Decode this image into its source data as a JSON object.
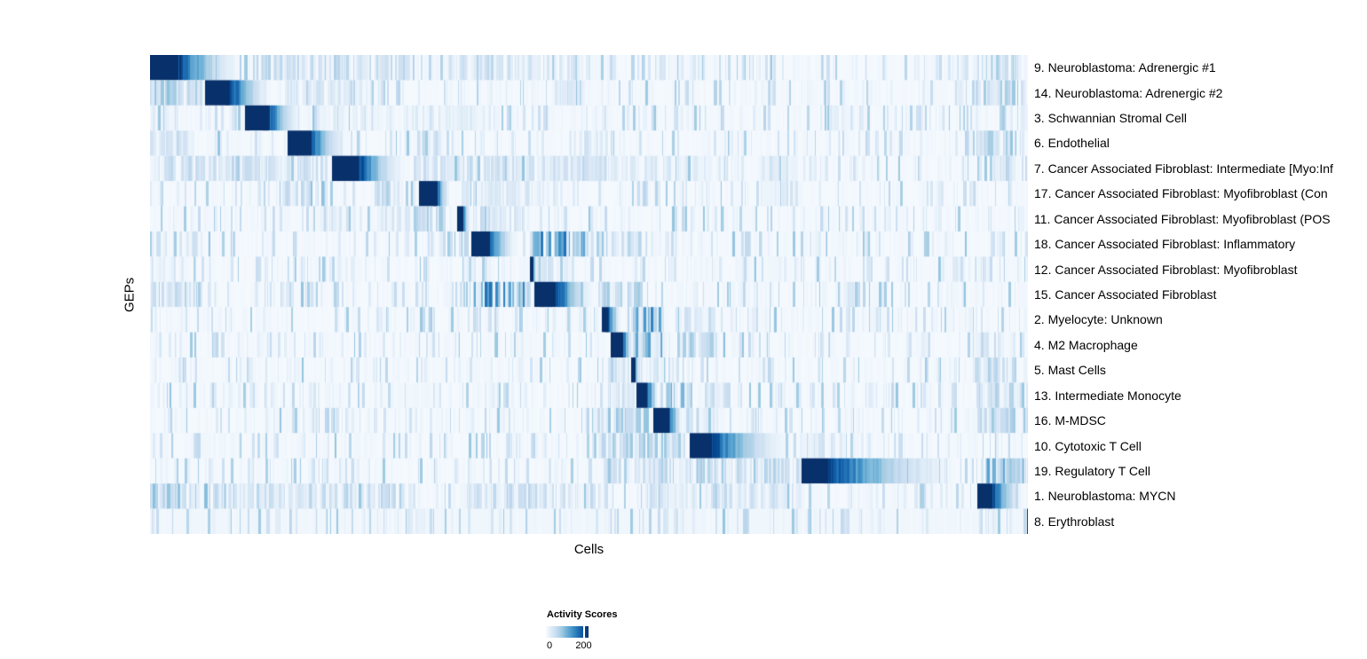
{
  "chart_data": {
    "type": "heatmap",
    "title": "",
    "xlabel": "Cells",
    "ylabel": "GEPs",
    "colormap": "Blues (white to dark blue)",
    "legend": {
      "title": "Activity Scores",
      "min_label": "0",
      "tick_label": "200",
      "tick_fraction": 0.875,
      "position": "bottom"
    },
    "color_scale": {
      "min": 0,
      "tick_value": 200,
      "colors": [
        "#f7fbff",
        "#deebf7",
        "#c6dbef",
        "#9ecae1",
        "#6baed6",
        "#4292c6",
        "#2171b5",
        "#08519c",
        "#08306b"
      ]
    },
    "description": "Cells (columns) grouped and sorted by dominant GEP activity, producing a diagonal of dark-blue blocks that fade rightward; sparse vertical blue stripes elsewhere. Block positions are fractions of the x-axis.",
    "rows": [
      {
        "label": "9. Neuroblastoma: Adrenergic #1",
        "block": {
          "start": 0.0,
          "core_end": 0.031,
          "fade_end": 0.113
        },
        "clusters": [
          [
            0.115,
            0.3,
            0.22
          ],
          [
            0.33,
            0.5,
            0.16
          ],
          [
            0.58,
            0.63,
            0.12
          ],
          [
            0.94,
            0.985,
            0.3
          ]
        ]
      },
      {
        "label": "14. Neuroblastoma: Adrenergic #2",
        "block": {
          "start": 0.06,
          "core_end": 0.091,
          "fade_end": 0.143
        },
        "clusters": [
          [
            0.0,
            0.058,
            0.3
          ],
          [
            0.15,
            0.27,
            0.14
          ],
          [
            0.46,
            0.5,
            0.12
          ],
          [
            0.94,
            0.985,
            0.28
          ]
        ]
      },
      {
        "label": "3. Schwannian Stromal Cell",
        "block": {
          "start": 0.107,
          "core_end": 0.133,
          "fade_end": 0.178
        },
        "clusters": [
          [
            0.0,
            0.02,
            0.15
          ],
          [
            0.19,
            0.4,
            0.1
          ],
          [
            0.77,
            0.8,
            0.12
          ]
        ]
      },
      {
        "label": "6. Endothelial",
        "block": {
          "start": 0.156,
          "core_end": 0.181,
          "fade_end": 0.229
        },
        "clusters": [
          [
            0.0,
            0.05,
            0.18
          ],
          [
            0.3,
            0.33,
            0.22
          ],
          [
            0.49,
            0.52,
            0.18
          ],
          [
            0.94,
            0.985,
            0.3
          ]
        ]
      },
      {
        "label": "7. Cancer Associated Fibroblast: Intermediate [Myo:Inf",
        "block": {
          "start": 0.206,
          "core_end": 0.237,
          "fade_end": 0.295
        },
        "clusters": [
          [
            0.0,
            0.2,
            0.2
          ],
          [
            0.3,
            0.6,
            0.16
          ],
          [
            0.6,
            0.77,
            0.1
          ],
          [
            0.94,
            0.985,
            0.24
          ]
        ]
      },
      {
        "label": "17. Cancer Associated Fibroblast: Myofibroblast (Con",
        "block": {
          "start": 0.306,
          "core_end": 0.325,
          "fade_end": 0.343
        },
        "clusters": [
          [
            0.15,
            0.2,
            0.3
          ],
          [
            0.26,
            0.3,
            0.18
          ],
          [
            0.35,
            0.45,
            0.14
          ],
          [
            0.7,
            0.73,
            0.1
          ]
        ]
      },
      {
        "label": "11. Cancer Associated Fibroblast: Myofibroblast (POS",
        "block": {
          "start": 0.349,
          "core_end": 0.355,
          "fade_end": 0.366
        },
        "clusters": [
          [
            0.2,
            0.3,
            0.14
          ],
          [
            0.3,
            0.345,
            0.25
          ],
          [
            0.37,
            0.43,
            0.2
          ]
        ]
      },
      {
        "label": "18. Cancer Associated Fibroblast: Inflammatory",
        "block": {
          "start": 0.366,
          "core_end": 0.385,
          "fade_end": 0.421
        },
        "clusters": [
          [
            0.0,
            0.06,
            0.16
          ],
          [
            0.33,
            0.36,
            0.28
          ],
          [
            0.43,
            0.5,
            0.55
          ],
          [
            0.5,
            0.56,
            0.24
          ],
          [
            0.57,
            0.6,
            0.14
          ]
        ]
      },
      {
        "label": "12. Cancer Associated Fibroblast: Myofibroblast",
        "block": {
          "start": 0.432,
          "core_end": 0.4355,
          "fade_end": 0.44
        },
        "clusters": [
          [
            0.0,
            0.04,
            0.14
          ],
          [
            0.2,
            0.23,
            0.1
          ],
          [
            0.44,
            0.48,
            0.14
          ]
        ]
      },
      {
        "label": "15. Cancer Associated Fibroblast",
        "block": {
          "start": 0.437,
          "core_end": 0.462,
          "fade_end": 0.51
        },
        "clusters": [
          [
            0.0,
            0.06,
            0.24
          ],
          [
            0.17,
            0.2,
            0.14
          ],
          [
            0.335,
            0.365,
            0.28
          ],
          [
            0.368,
            0.435,
            0.55
          ],
          [
            0.51,
            0.56,
            0.26
          ]
        ]
      },
      {
        "label": "2. Myelocyte: Unknown",
        "block": {
          "start": 0.513,
          "core_end": 0.521,
          "fade_end": 0.538
        },
        "clusters": [
          [
            0.545,
            0.585,
            0.5
          ],
          [
            0.6,
            0.64,
            0.16
          ],
          [
            0.66,
            0.69,
            0.1
          ]
        ]
      },
      {
        "label": "4. M2 Macrophage",
        "block": {
          "start": 0.523,
          "core_end": 0.537,
          "fade_end": 0.551
        },
        "clusters": [
          [
            0.07,
            0.075,
            0.28
          ],
          [
            0.55,
            0.585,
            0.45
          ],
          [
            0.6,
            0.655,
            0.32
          ],
          [
            0.94,
            0.97,
            0.14
          ]
        ]
      },
      {
        "label": "5. Mast Cells",
        "block": {
          "start": 0.548,
          "core_end": 0.5515,
          "fade_end": 0.557
        },
        "clusters": [
          [
            0.52,
            0.545,
            0.16
          ],
          [
            0.558,
            0.6,
            0.16
          ],
          [
            0.94,
            0.985,
            0.24
          ]
        ]
      },
      {
        "label": "13. Intermediate Monocyte",
        "block": {
          "start": 0.554,
          "core_end": 0.565,
          "fade_end": 0.58
        },
        "clusters": [
          [
            0.07,
            0.075,
            0.22
          ],
          [
            0.52,
            0.552,
            0.2
          ],
          [
            0.585,
            0.625,
            0.4
          ],
          [
            0.63,
            0.66,
            0.18
          ],
          [
            0.94,
            0.985,
            0.28
          ]
        ]
      },
      {
        "label": "16. M-MDSC",
        "block": {
          "start": 0.571,
          "core_end": 0.59,
          "fade_end": 0.608
        },
        "clusters": [
          [
            0.21,
            0.23,
            0.14
          ],
          [
            0.515,
            0.57,
            0.3
          ],
          [
            0.61,
            0.65,
            0.18
          ],
          [
            0.94,
            0.985,
            0.26
          ]
        ]
      },
      {
        "label": "10. Cytotoxic T Cell",
        "block": {
          "start": 0.613,
          "core_end": 0.639,
          "fade_end": 0.739
        },
        "clusters": [
          [
            0.17,
            0.175,
            0.18
          ],
          [
            0.515,
            0.61,
            0.28
          ],
          [
            0.74,
            0.78,
            0.14
          ]
        ]
      },
      {
        "label": "19. Regulatory T Cell",
        "block": {
          "start": 0.742,
          "core_end": 0.77,
          "fade_end": 0.939
        },
        "clusters": [
          [
            0.515,
            0.74,
            0.26
          ],
          [
            0.945,
            0.995,
            0.42
          ]
        ]
      },
      {
        "label": "1. Neuroblastoma: MYCN",
        "block": {
          "start": 0.942,
          "core_end": 0.958,
          "fade_end": 1.0
        },
        "clusters": [
          [
            0.0,
            0.065,
            0.32
          ],
          [
            0.07,
            0.3,
            0.2
          ],
          [
            0.36,
            0.52,
            0.2
          ],
          [
            0.555,
            0.74,
            0.16
          ],
          [
            0.8,
            0.83,
            0.1
          ]
        ]
      },
      {
        "label": "8. Erythroblast",
        "block": {
          "start": 0.9985,
          "core_end": 1.0,
          "fade_end": 1.0
        },
        "base": 0.04,
        "clusters": [
          [
            0.3,
            0.31,
            0.08
          ],
          [
            0.6,
            0.61,
            0.06
          ]
        ]
      }
    ]
  }
}
